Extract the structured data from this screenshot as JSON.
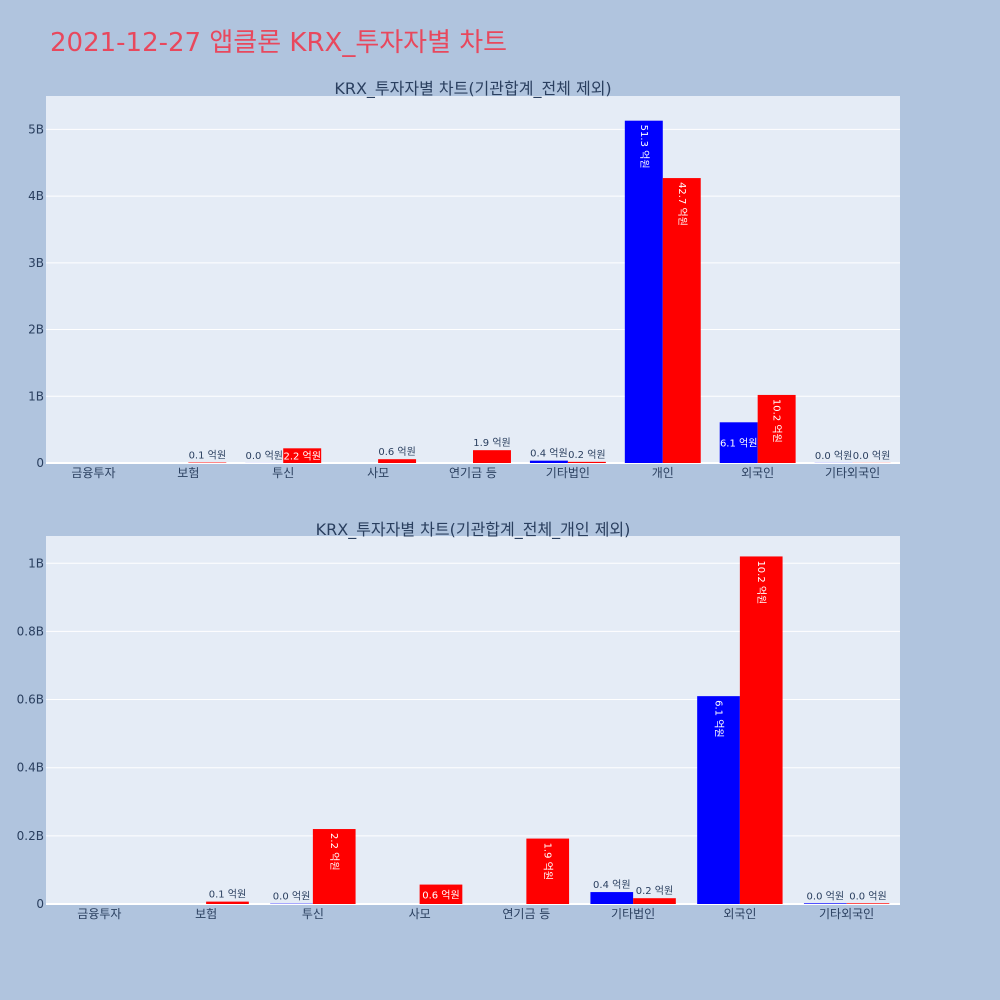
{
  "page": {
    "title": "2021-12-27 앱클론 KRX_투자자별 차트"
  },
  "colors": {
    "buy": "#0000ff",
    "sell": "#ff0000",
    "title": "#e8485d",
    "plot_bg": "#e5ecf6",
    "page_bg": "#b0c4de"
  },
  "chart_data": [
    {
      "type": "bar",
      "title": "KRX_투자자별 차트(기관합계_전체 제외)",
      "categories": [
        "금융투자",
        "보험",
        "투신",
        "사모",
        "연기금 등",
        "기타법인",
        "개인",
        "외국인",
        "기타외국인"
      ],
      "ylim": [
        0,
        5.5
      ],
      "y_ticks": [
        0,
        1,
        2,
        3,
        4,
        5
      ],
      "y_tick_labels": [
        "0",
        "1B",
        "2B",
        "3B",
        "4B",
        "5B"
      ],
      "series": [
        {
          "color": "#0000ff",
          "values": [
            0,
            0,
            0.001,
            0,
            0,
            0.035,
            5.13,
            0.61,
            0.002
          ],
          "labels": [
            "",
            "",
            "0.0 억원",
            "",
            "",
            "0.4 억원",
            "51.3 억원",
            "6.1 억원",
            "0.0 억원"
          ]
        },
        {
          "color": "#ff0000",
          "values": [
            0,
            0.007,
            0.22,
            0.057,
            0.192,
            0.017,
            4.27,
            1.02,
            0.002
          ],
          "labels": [
            "",
            "0.1 억원",
            "2.2 억원",
            "0.6 억원",
            "1.9 억원",
            "0.2 억원",
            "42.7 억원",
            "10.2 억원",
            "0.0 억원"
          ]
        }
      ]
    },
    {
      "type": "bar",
      "title": "KRX_투자자별 차트(기관합계_전체_개인 제외)",
      "categories": [
        "금융투자",
        "보험",
        "투신",
        "사모",
        "연기금 등",
        "기타법인",
        "외국인",
        "기타외국인"
      ],
      "ylim": [
        0,
        1.08
      ],
      "y_ticks": [
        0,
        0.2,
        0.4,
        0.6,
        0.8,
        1.0
      ],
      "y_tick_labels": [
        "0",
        "0.2B",
        "0.4B",
        "0.6B",
        "0.8B",
        "1B"
      ],
      "series": [
        {
          "color": "#0000ff",
          "values": [
            0,
            0,
            0.001,
            0,
            0,
            0.035,
            0.61,
            0.002
          ],
          "labels": [
            "",
            "",
            "0.0 억원",
            "",
            "",
            "0.4 억원",
            "6.1 억원",
            "0.0 억원"
          ]
        },
        {
          "color": "#ff0000",
          "values": [
            0,
            0.007,
            0.22,
            0.057,
            0.192,
            0.017,
            1.02,
            0.002
          ],
          "labels": [
            "",
            "0.1 억원",
            "2.2 억원",
            "0.6 억원",
            "1.9 억원",
            "0.2 억원",
            "10.2 억원",
            "0.0 억원"
          ]
        }
      ]
    }
  ]
}
